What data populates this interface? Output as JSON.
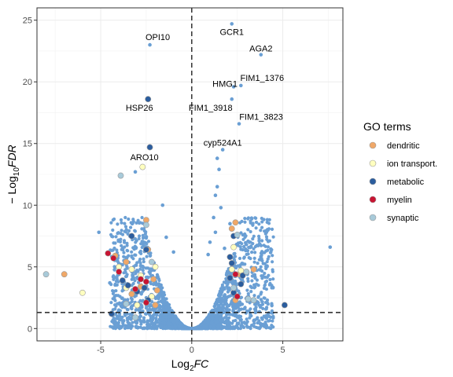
{
  "chart_data": {
    "type": "scatter",
    "title": "",
    "xlabel_main": "Log",
    "xlabel_sub": "2",
    "xlabel_italic": "FC",
    "ylabel_prefix": "− Log",
    "ylabel_sub": "10",
    "ylabel_italic": "FDR",
    "xlim": [
      -8.5,
      8.3
    ],
    "ylim": [
      -1,
      26
    ],
    "x_ticks": [
      -5,
      0,
      5
    ],
    "x_tick_labels": [
      "-5",
      "0",
      "5"
    ],
    "y_ticks": [
      0,
      5,
      10,
      15,
      20,
      25
    ],
    "y_tick_labels": [
      "0",
      "5",
      "10",
      "15",
      "20",
      "25"
    ],
    "grid": true,
    "threshold_lines": {
      "x": 0,
      "y": 1.3
    },
    "background_color": "#6a9fd4",
    "background_series": [
      {
        "x": 2.2,
        "y": 24.7
      },
      {
        "x": -2.3,
        "y": 23.0
      },
      {
        "x": 3.8,
        "y": 22.2
      },
      {
        "x": 2.3,
        "y": 19.6
      },
      {
        "x": 2.7,
        "y": 19.7
      },
      {
        "x": 2.2,
        "y": 18.6
      },
      {
        "x": 2.6,
        "y": 16.6
      },
      {
        "x": 1.7,
        "y": 14.5
      },
      {
        "x": 1.4,
        "y": 13.8
      },
      {
        "x": 1.5,
        "y": 12.9
      },
      {
        "x": -3.1,
        "y": 12.7
      },
      {
        "x": 1.4,
        "y": 11.5
      },
      {
        "x": 1.3,
        "y": 10.8
      },
      {
        "x": -1.6,
        "y": 10.0
      },
      {
        "x": 1.6,
        "y": 9.8
      },
      {
        "x": 1.2,
        "y": 9.0
      },
      {
        "x": 2.1,
        "y": 8.5
      },
      {
        "x": 1.3,
        "y": 7.8
      },
      {
        "x": -5.1,
        "y": 7.8
      },
      {
        "x": -3.4,
        "y": 7.5
      },
      {
        "x": 7.6,
        "y": 6.6
      },
      {
        "x": -1.4,
        "y": 7.4
      },
      {
        "x": 1.0,
        "y": 7.0
      },
      {
        "x": -3.9,
        "y": 5.2
      },
      {
        "x": 3.3,
        "y": 2.3
      },
      {
        "x": 3.5,
        "y": 1.3
      },
      {
        "x": -4.5,
        "y": 3.7
      },
      {
        "x": 1.8,
        "y": 6.5
      },
      {
        "x": 0.9,
        "y": 6.0
      },
      {
        "x": -1.0,
        "y": 6.2
      }
    ],
    "cloud": {
      "count": 2600,
      "x_range": [
        -4.5,
        4.5
      ],
      "y_max": 9.0
    },
    "gene_labels": [
      {
        "text": "GCR1",
        "x": 2.2,
        "y": 24.7
      },
      {
        "text": "OPI10",
        "x": -2.3,
        "y": 23.0
      },
      {
        "text": "AGA2",
        "x": 3.8,
        "y": 22.2
      },
      {
        "text": "FIM1_1376",
        "x": 2.7,
        "y": 19.7
      },
      {
        "text": "HMG1",
        "x": 2.3,
        "y": 19.6
      },
      {
        "text": "HSP26",
        "x": -2.4,
        "y": 18.6
      },
      {
        "text": "FIM1_3918",
        "x": 2.2,
        "y": 18.6
      },
      {
        "text": "FIM1_3823",
        "x": 2.6,
        "y": 16.6
      },
      {
        "text": "cyp524A1",
        "x": 1.7,
        "y": 14.5
      },
      {
        "text": "ARO10",
        "x": -2.6,
        "y": 13.2
      }
    ],
    "legend": {
      "title": "GO terms",
      "position": "right"
    },
    "series": [
      {
        "name": "dendritic",
        "color": "#f0a868",
        "points": [
          {
            "x": -2.5,
            "y": 8.8
          },
          {
            "x": -2.4,
            "y": 6.4
          },
          {
            "x": 2.2,
            "y": 8.1
          },
          {
            "x": 2.4,
            "y": 8.6
          },
          {
            "x": -7.0,
            "y": 4.4
          },
          {
            "x": -4.2,
            "y": 5.9
          },
          {
            "x": -3.6,
            "y": 5.4
          },
          {
            "x": 3.4,
            "y": 4.8
          },
          {
            "x": -2.1,
            "y": 4.0
          },
          {
            "x": -2.8,
            "y": 3.4
          },
          {
            "x": 2.4,
            "y": 2.3
          },
          {
            "x": -2.0,
            "y": 1.9
          },
          {
            "x": -3.3,
            "y": 2.8
          },
          {
            "x": 2.6,
            "y": 4.4
          },
          {
            "x": -1.9,
            "y": 3.1
          }
        ]
      },
      {
        "name": "ion transport.",
        "color": "#ffffbf",
        "points": [
          {
            "x": -2.7,
            "y": 13.1
          },
          {
            "x": -6.0,
            "y": 2.9
          },
          {
            "x": -4.0,
            "y": 5.0
          },
          {
            "x": 2.3,
            "y": 6.6
          },
          {
            "x": -3.3,
            "y": 4.8
          },
          {
            "x": -2.8,
            "y": 4.3
          },
          {
            "x": 2.2,
            "y": 4.8
          },
          {
            "x": -3.6,
            "y": 3.3
          },
          {
            "x": -2.2,
            "y": 2.6
          },
          {
            "x": -3.0,
            "y": 1.9
          },
          {
            "x": 2.7,
            "y": 4.7
          },
          {
            "x": -2.0,
            "y": 5.0
          }
        ]
      },
      {
        "name": "metabolic",
        "color": "#2b5d9e",
        "points": [
          {
            "x": -2.4,
            "y": 18.6
          },
          {
            "x": -2.3,
            "y": 14.7
          },
          {
            "x": -3.3,
            "y": 7.5
          },
          {
            "x": -2.5,
            "y": 6.4
          },
          {
            "x": 2.3,
            "y": 7.5
          },
          {
            "x": 2.1,
            "y": 5.8
          },
          {
            "x": 2.2,
            "y": 5.3
          },
          {
            "x": -3.8,
            "y": 3.9
          },
          {
            "x": -4.4,
            "y": 1.2
          },
          {
            "x": 5.1,
            "y": 1.9
          },
          {
            "x": 2.7,
            "y": 3.6
          },
          {
            "x": -2.4,
            "y": 2.3
          },
          {
            "x": -3.0,
            "y": 3.0
          },
          {
            "x": 2.3,
            "y": 2.9
          },
          {
            "x": -3.5,
            "y": 3.5
          },
          {
            "x": 2.8,
            "y": 4.3
          },
          {
            "x": -2.6,
            "y": 3.3
          },
          {
            "x": 2.1,
            "y": 4.1
          }
        ]
      },
      {
        "name": "myelin",
        "color": "#c81432",
        "points": [
          {
            "x": -4.6,
            "y": 6.1
          },
          {
            "x": -4.3,
            "y": 5.7
          },
          {
            "x": -4.0,
            "y": 4.6
          },
          {
            "x": -2.5,
            "y": 3.8
          },
          {
            "x": -2.8,
            "y": 4.0
          },
          {
            "x": 2.5,
            "y": 2.6
          },
          {
            "x": -2.5,
            "y": 2.1
          },
          {
            "x": 2.4,
            "y": 4.4
          },
          {
            "x": -3.1,
            "y": 3.2
          }
        ]
      },
      {
        "name": "synaptic",
        "color": "#a8cad9",
        "points": [
          {
            "x": -3.9,
            "y": 12.4
          },
          {
            "x": -8.0,
            "y": 4.4
          },
          {
            "x": 2.5,
            "y": 7.6
          },
          {
            "x": 3.0,
            "y": 4.6
          },
          {
            "x": 3.1,
            "y": 2.4
          },
          {
            "x": 3.4,
            "y": 2.3
          },
          {
            "x": -2.5,
            "y": 8.4
          },
          {
            "x": -2.2,
            "y": 5.4
          },
          {
            "x": -3.1,
            "y": 0.9
          },
          {
            "x": 2.3,
            "y": 3.3
          },
          {
            "x": -3.6,
            "y": 2.0
          }
        ]
      }
    ]
  }
}
